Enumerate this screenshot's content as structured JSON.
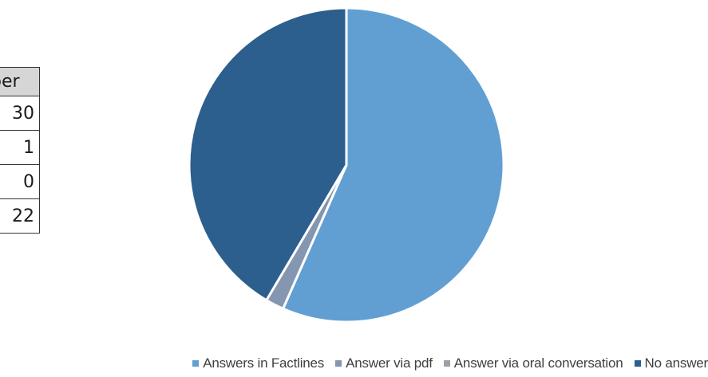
{
  "table": {
    "header": "ber",
    "rows": [
      "30",
      "1",
      "0",
      "22"
    ]
  },
  "chart_data": {
    "type": "pie",
    "categories": [
      "Answers in Factlines",
      "Answer via pdf",
      "Answer via oral conversation",
      "No answer"
    ],
    "values": [
      30,
      1,
      0,
      22
    ],
    "colors": [
      "#619fd2",
      "#8496b0",
      "#9e9ea8",
      "#2c5f8d"
    ],
    "legend_position": "bottom"
  }
}
